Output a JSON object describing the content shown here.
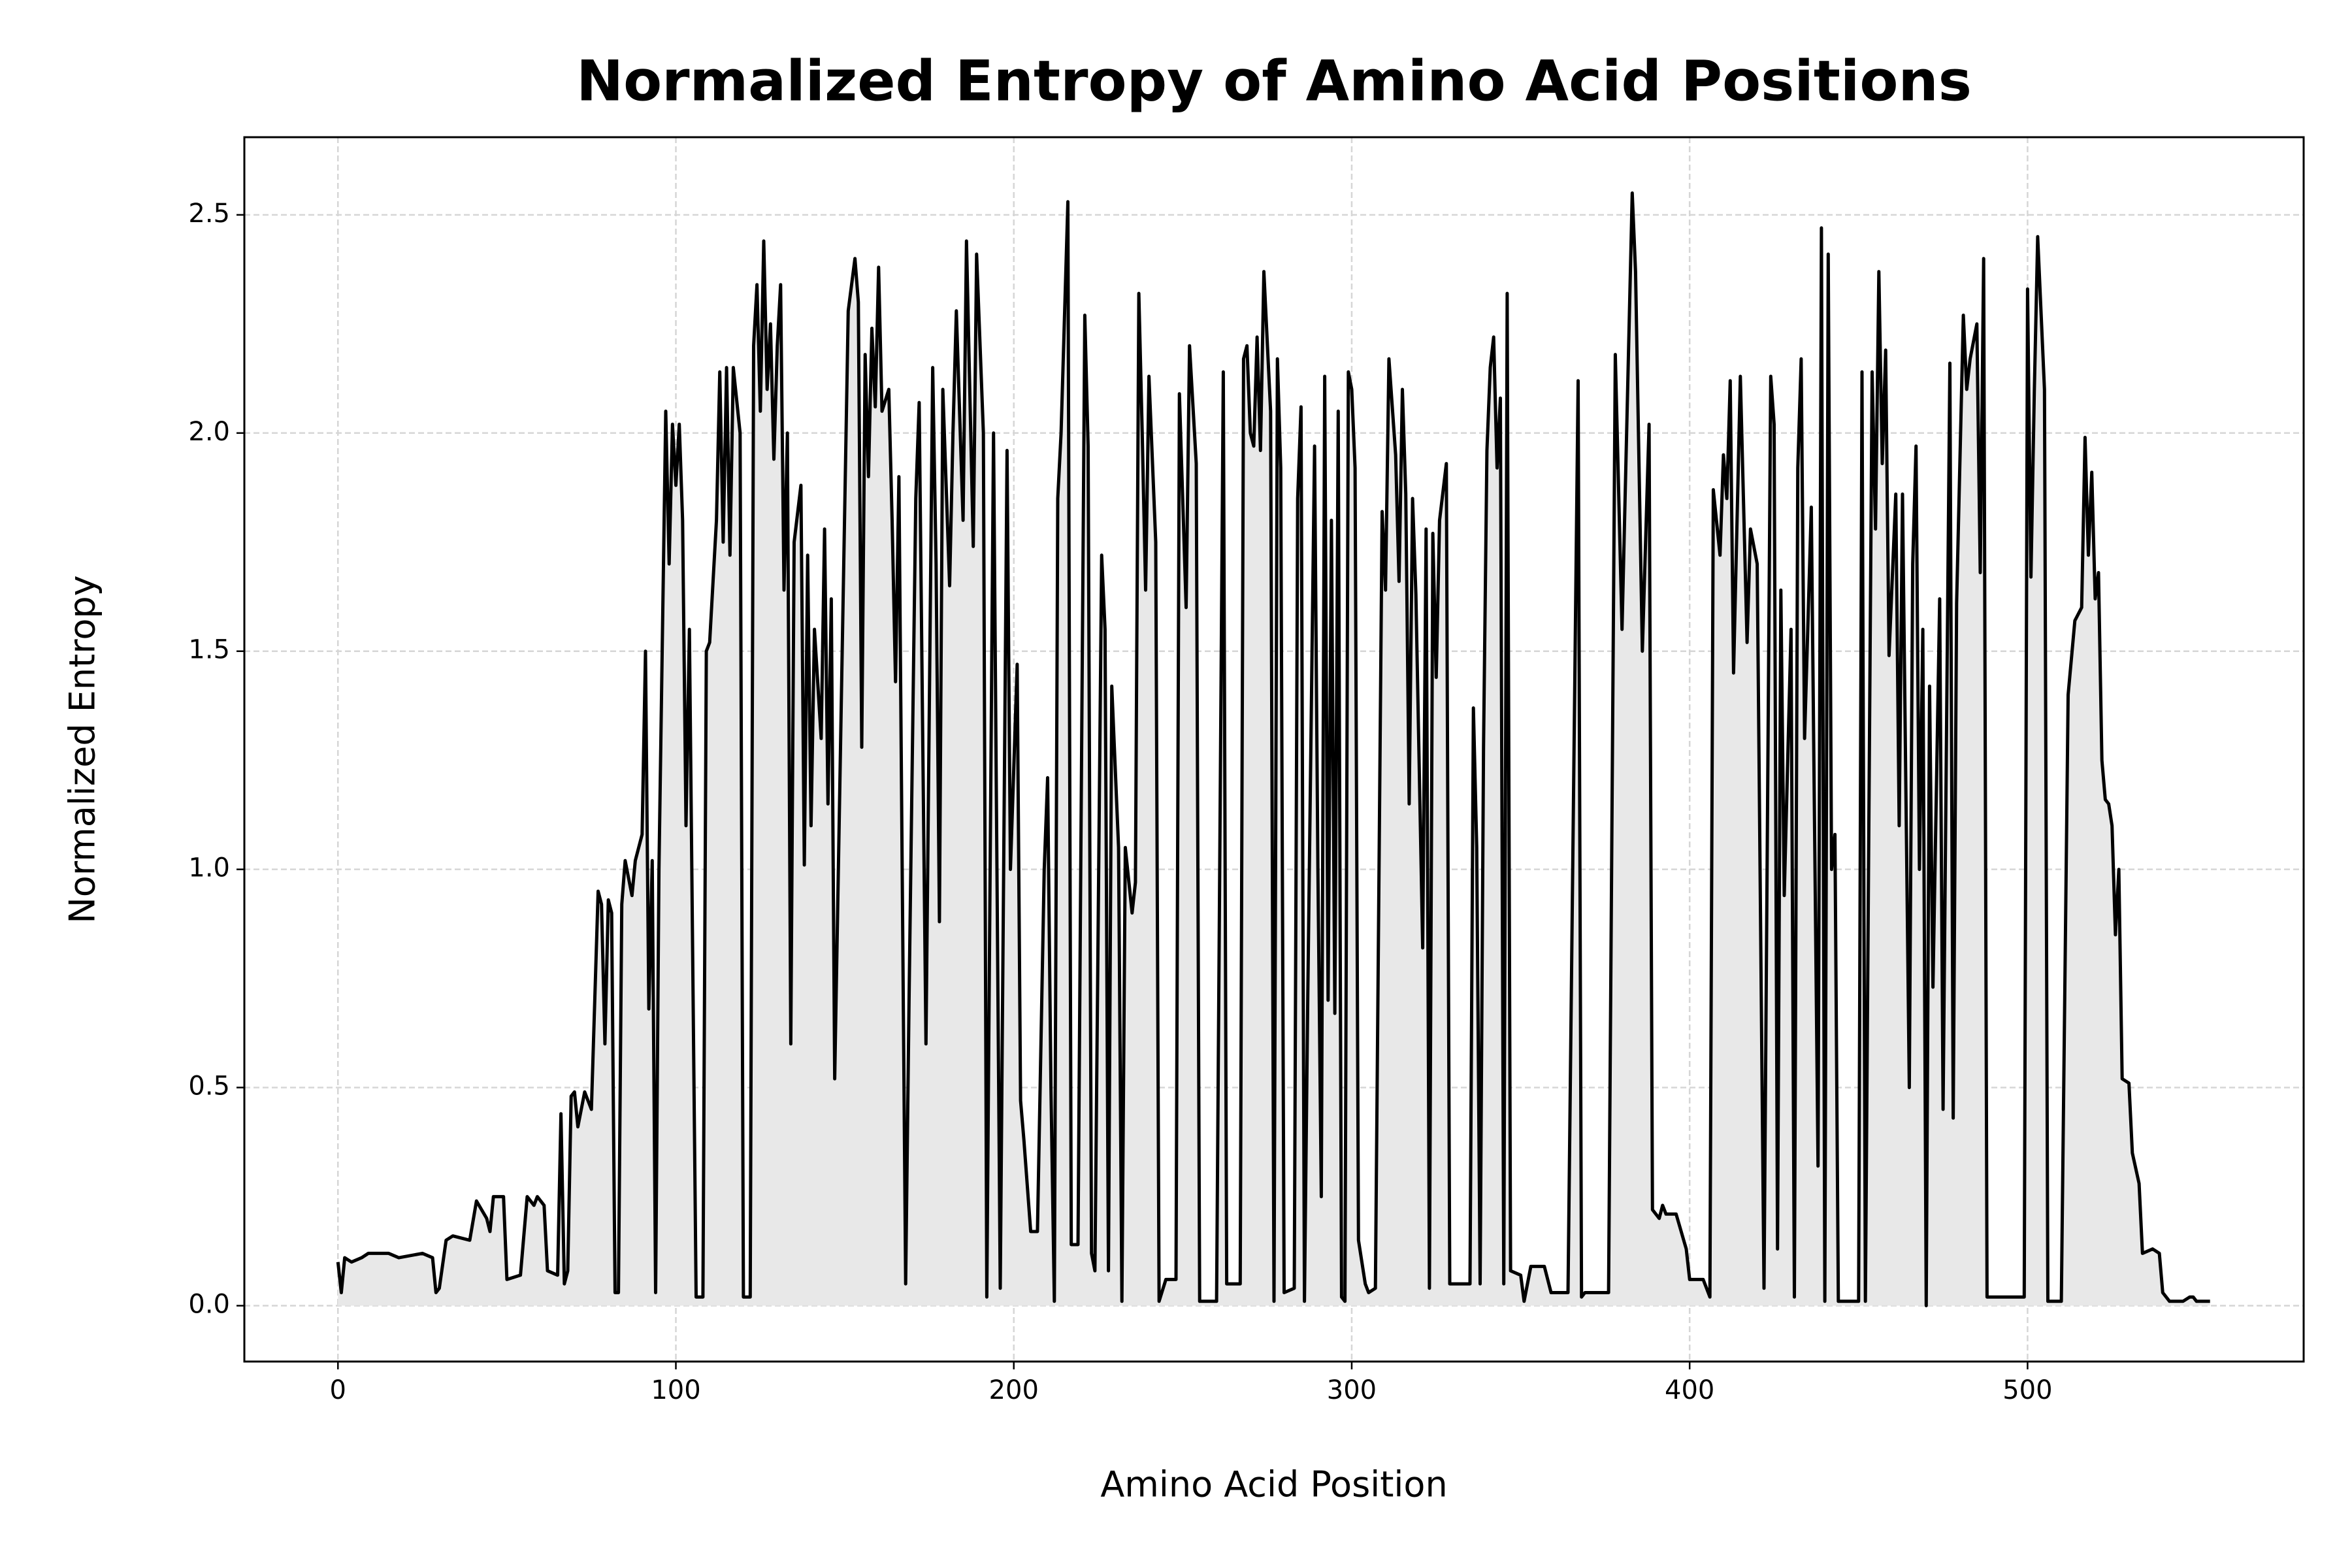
{
  "chart_data": {
    "type": "line",
    "title": "Normalized Entropy of Amino Acid Positions",
    "xlabel": "Amino Acid Position",
    "ylabel": "Normalized Entropy",
    "color": "#000000",
    "fill_color": "#e8e8e8",
    "grid": true,
    "xlim": [
      -27.7,
      581.7
    ],
    "ylim": [
      -0.128,
      2.678
    ],
    "xticks": [
      0,
      100,
      200,
      300,
      400,
      500
    ],
    "yticks": [
      {
        "value": 0,
        "label": "0.0"
      },
      0.5,
      {
        "value": 1,
        "label": "1.0"
      },
      1.5,
      {
        "value": 2,
        "label": "2.0"
      },
      2.5
    ],
    "x": [
      0,
      1,
      2,
      4,
      7,
      9,
      15,
      18,
      25,
      28,
      29,
      30,
      32,
      34,
      39,
      41,
      44,
      45,
      46,
      49,
      50,
      54,
      56,
      58,
      59,
      61,
      62,
      65,
      66,
      67,
      68,
      69,
      70,
      71,
      73,
      74,
      75,
      77,
      78,
      79,
      80,
      81,
      82,
      83,
      84,
      85,
      87,
      88,
      90,
      91,
      92,
      93,
      94,
      95,
      97,
      98,
      99,
      100,
      101,
      102,
      103,
      104,
      106,
      108,
      109,
      110,
      112,
      113,
      114,
      115,
      116,
      117,
      119,
      120,
      122,
      123,
      124,
      125,
      126,
      127,
      128,
      129,
      130,
      131,
      132,
      133,
      134,
      135,
      137,
      138,
      139,
      140,
      141,
      143,
      144,
      145,
      146,
      147,
      149,
      151,
      153,
      154,
      155,
      156,
      157,
      158,
      159,
      160,
      161,
      163,
      164,
      165,
      166,
      168,
      169,
      171,
      172,
      174,
      176,
      177,
      178,
      179,
      181,
      182,
      183,
      185,
      186,
      188,
      189,
      191,
      192,
      194,
      196,
      198,
      199,
      201,
      202,
      203,
      205,
      207,
      209,
      210,
      211,
      212,
      213,
      214,
      216,
      217,
      219,
      221,
      222,
      223,
      224,
      226,
      227,
      228,
      229,
      231,
      232,
      233,
      235,
      236,
      237,
      238,
      239,
      240,
      242,
      243,
      245,
      248,
      249,
      251,
      252,
      254,
      255,
      260,
      262,
      263,
      267,
      268,
      269,
      270,
      271,
      272,
      273,
      274,
      276,
      277,
      278,
      279,
      280,
      283,
      284,
      285,
      286,
      287,
      289,
      290,
      291,
      292,
      293,
      294,
      295,
      296,
      297,
      298,
      299,
      300,
      301,
      302,
      304,
      305,
      307,
      309,
      310,
      311,
      313,
      314,
      315,
      316,
      317,
      318,
      319,
      321,
      322,
      323,
      324,
      325,
      326,
      328,
      329,
      335,
      336,
      337,
      338,
      339,
      340,
      341,
      342,
      343,
      344,
      345,
      346,
      347,
      350,
      351,
      353,
      357,
      359,
      364,
      367,
      368,
      369,
      376,
      378,
      380,
      383,
      384,
      386,
      388,
      389,
      391,
      392,
      393,
      396,
      399,
      400,
      404,
      406,
      407,
      409,
      410,
      411,
      412,
      413,
      415,
      417,
      418,
      420,
      422,
      424,
      425,
      426,
      427,
      428,
      430,
      431,
      432,
      433,
      434,
      436,
      438,
      439,
      440,
      441,
      442,
      443,
      444,
      450,
      451,
      452,
      454,
      455,
      456,
      457,
      458,
      459,
      461,
      462,
      463,
      465,
      466,
      467,
      468,
      469,
      470,
      471,
      472,
      474,
      475,
      477,
      478,
      479,
      481,
      482,
      483,
      485,
      486,
      487,
      488,
      499,
      500,
      501,
      502,
      503,
      505,
      506,
      510,
      512,
      514,
      516,
      517,
      518,
      519,
      520,
      521,
      522,
      523,
      524,
      525,
      526,
      527,
      528,
      530,
      531,
      533,
      534,
      537,
      539,
      540,
      542,
      546,
      548,
      549,
      550,
      554
    ],
    "values": [
      0.1,
      0.03,
      0.11,
      0.1,
      0.11,
      0.12,
      0.12,
      0.11,
      0.12,
      0.11,
      0.03,
      0.04,
      0.15,
      0.16,
      0.15,
      0.24,
      0.2,
      0.17,
      0.25,
      0.25,
      0.06,
      0.07,
      0.25,
      0.23,
      0.25,
      0.23,
      0.08,
      0.07,
      0.44,
      0.05,
      0.08,
      0.48,
      0.49,
      0.41,
      0.49,
      0.47,
      0.45,
      0.95,
      0.92,
      0.6,
      0.93,
      0.9,
      0.03,
      0.03,
      0.92,
      1.02,
      0.94,
      1.02,
      1.08,
      1.5,
      0.68,
      1.02,
      0.03,
      1.0,
      2.05,
      1.7,
      2.02,
      1.88,
      2.02,
      1.8,
      1.1,
      1.55,
      0.02,
      0.02,
      1.5,
      1.52,
      1.8,
      2.14,
      1.75,
      2.15,
      1.72,
      2.15,
      2.0,
      0.02,
      0.02,
      2.2,
      2.34,
      2.05,
      2.44,
      2.1,
      2.25,
      1.94,
      2.2,
      2.34,
      1.64,
      2.0,
      0.6,
      1.75,
      1.88,
      1.01,
      1.72,
      1.1,
      1.55,
      1.3,
      1.78,
      1.15,
      1.62,
      0.52,
      1.4,
      2.28,
      2.4,
      2.3,
      1.28,
      2.18,
      1.9,
      2.24,
      2.06,
      2.38,
      2.05,
      2.1,
      1.8,
      1.43,
      1.9,
      0.05,
      0.7,
      1.85,
      2.07,
      0.6,
      2.15,
      1.7,
      0.88,
      2.1,
      1.65,
      2.0,
      2.28,
      1.8,
      2.44,
      1.74,
      2.41,
      2.0,
      0.02,
      2.0,
      0.04,
      1.96,
      1.0,
      1.47,
      0.47,
      0.38,
      0.17,
      0.17,
      1.0,
      1.21,
      0.5,
      0.01,
      1.85,
      2.0,
      2.53,
      0.14,
      0.14,
      2.27,
      1.97,
      0.12,
      0.08,
      1.72,
      1.55,
      0.08,
      1.42,
      1.05,
      0.01,
      1.05,
      0.9,
      0.97,
      2.32,
      2.0,
      1.64,
      2.13,
      1.75,
      0.01,
      0.06,
      0.06,
      2.09,
      1.6,
      2.2,
      1.93,
      0.01,
      0.01,
      2.14,
      0.05,
      0.05,
      2.17,
      2.2,
      2.0,
      1.97,
      2.22,
      1.96,
      2.37,
      2.05,
      0.01,
      2.17,
      1.92,
      0.03,
      0.04,
      1.85,
      2.06,
      0.01,
      0.71,
      1.97,
      1.0,
      0.25,
      2.13,
      0.7,
      1.8,
      0.67,
      2.05,
      0.02,
      0.01,
      2.14,
      2.1,
      1.92,
      0.15,
      0.05,
      0.03,
      0.04,
      1.82,
      1.64,
      2.17,
      1.95,
      1.66,
      2.1,
      1.86,
      1.15,
      1.85,
      1.63,
      0.82,
      1.78,
      0.04,
      1.77,
      1.44,
      1.8,
      1.93,
      0.05,
      0.05,
      1.37,
      1.05,
      0.05,
      1.28,
      1.96,
      2.15,
      2.22,
      1.92,
      2.08,
      0.05,
      2.32,
      0.08,
      0.07,
      0.01,
      0.09,
      0.09,
      0.03,
      0.03,
      2.12,
      0.02,
      0.03,
      0.03,
      2.18,
      1.55,
      2.55,
      2.37,
      1.5,
      2.02,
      0.22,
      0.2,
      0.23,
      0.21,
      0.21,
      0.13,
      0.06,
      0.06,
      0.02,
      1.87,
      1.72,
      1.95,
      1.85,
      2.12,
      1.45,
      2.13,
      1.52,
      1.78,
      1.7,
      0.04,
      2.13,
      2.02,
      0.13,
      1.64,
      0.94,
      1.55,
      0.02,
      1.92,
      2.17,
      1.3,
      1.83,
      0.32,
      2.47,
      0.01,
      2.41,
      1.0,
      1.08,
      0.01,
      0.01,
      2.14,
      0.01,
      2.14,
      1.78,
      2.37,
      1.93,
      2.19,
      1.49,
      1.86,
      1.1,
      1.86,
      0.5,
      1.7,
      1.97,
      1.0,
      1.55,
      0.0,
      1.42,
      0.73,
      1.62,
      0.45,
      2.16,
      0.43,
      1.61,
      2.27,
      2.1,
      2.17,
      2.25,
      1.68,
      2.4,
      0.02,
      0.02,
      2.33,
      1.67,
      2.1,
      2.45,
      2.1,
      0.01,
      0.01,
      1.4,
      1.57,
      1.6,
      1.99,
      1.72,
      1.91,
      1.62,
      1.68,
      1.25,
      1.16,
      1.15,
      1.1,
      0.85,
      1.0,
      0.52,
      0.51,
      0.35,
      0.28,
      0.12,
      0.13,
      0.12,
      0.03,
      0.01,
      0.01,
      0.02,
      0.02,
      0.01,
      0.01
    ]
  }
}
